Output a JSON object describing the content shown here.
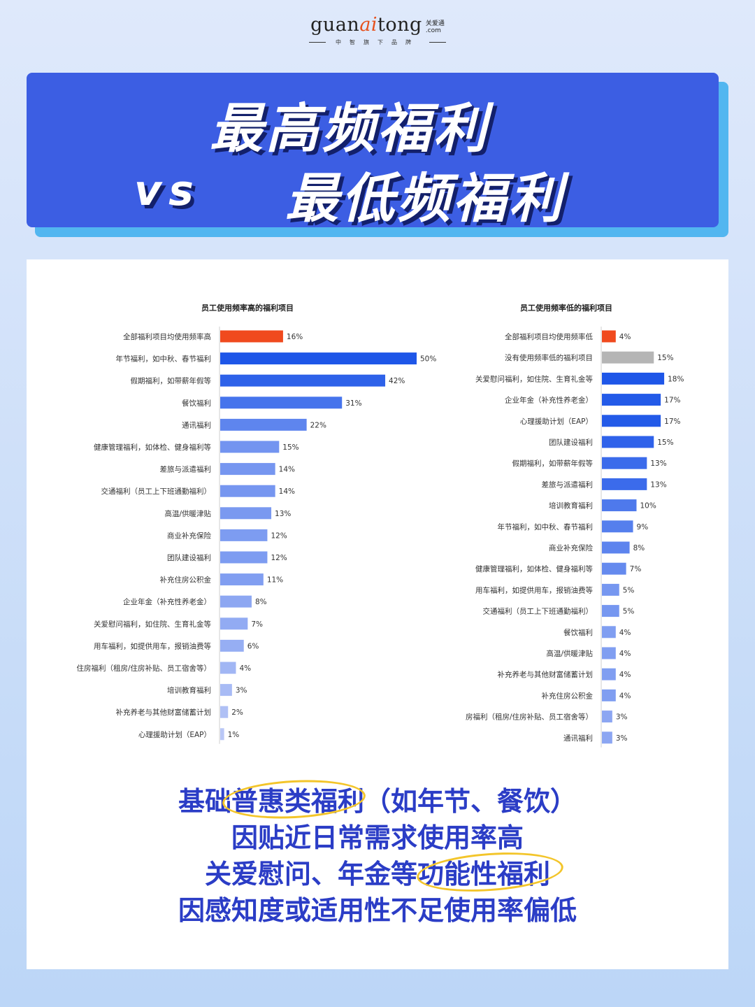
{
  "logo": {
    "word_pre": "guan",
    "word_mid": "ai",
    "word_post": "tong",
    "side_cn": "关爱通",
    "side_com": ".com",
    "sub": "中智旗下品牌"
  },
  "banner": {
    "line1": "最高频福利",
    "vs": "vs",
    "line2": "最低频福利"
  },
  "colors": {
    "highlight_bar": "#f04a1e",
    "grey_bar": "#b5b5b5",
    "banner_bg": "#3c5ee3",
    "banner_shadow": "#52b6f0",
    "text_blue": "#2b3dc6",
    "circle": "#f3c52a"
  },
  "chart_data": [
    {
      "type": "bar",
      "orientation": "horizontal",
      "title": "员工使用频率高的福利项目",
      "categories": [
        "全部福利项目均使用频率高",
        "年节福利，如中秋、春节福利",
        "假期福利，如带薪年假等",
        "餐饮福利",
        "通讯福利",
        "健康管理福利，如体检、健身福利等",
        "差旅与派遣福利",
        "交通福利（员工上下班通勤福利）",
        "高温/供暖津贴",
        "商业补充保险",
        "团队建设福利",
        "补充住房公积金",
        "企业年金（补充性养老金）",
        "关爱慰问福利，如住院、生育礼金等",
        "用车福利，如提供用车，报销油费等",
        "住房福利（租房/住房补贴、员工宿舍等）",
        "培训教育福利",
        "补充养老与其他财富储蓄计划",
        "心理援助计划（EAP）"
      ],
      "values": [
        16,
        50,
        42,
        31,
        22,
        15,
        14,
        14,
        13,
        12,
        12,
        11,
        8,
        7,
        6,
        4,
        3,
        2,
        1
      ],
      "value_labels": [
        "16%",
        "50%",
        "42%",
        "31%",
        "22%",
        "15%",
        "14%",
        "14%",
        "13%",
        "12%",
        "12%",
        "11%",
        "8%",
        "7%",
        "6%",
        "4%",
        "3%",
        "2%",
        "1%"
      ],
      "highlight_index": 0,
      "unit": "%"
    },
    {
      "type": "bar",
      "orientation": "horizontal",
      "title": "员工使用频率低的福利项目",
      "categories": [
        "全部福利项目均使用频率低",
        "没有使用频率低的福利项目",
        "关爱慰问福利，如住院、生育礼金等",
        "企业年金（补充性养老金）",
        "心理援助计划（EAP）",
        "团队建设福利",
        "假期福利，如带薪年假等",
        "差旅与派遣福利",
        "培训教育福利",
        "年节福利，如中秋、春节福利",
        "商业补充保险",
        "健康管理福利，如体检、健身福利等",
        "用车福利，如提供用车，报销油费等",
        "交通福利（员工上下班通勤福利）",
        "餐饮福利",
        "高温/供暖津贴",
        "补充养老与其他财富储蓄计划",
        "补充住房公积金",
        "房福利（租房/住房补贴、员工宿舍等）",
        "通讯福利"
      ],
      "values": [
        4,
        15,
        18,
        17,
        17,
        15,
        13,
        13,
        10,
        9,
        8,
        7,
        5,
        5,
        4,
        4,
        4,
        4,
        3,
        3
      ],
      "value_labels": [
        "4%",
        "15%",
        "18%",
        "17%",
        "17%",
        "15%",
        "13%",
        "13%",
        "10%",
        "9%",
        "8%",
        "7%",
        "5%",
        "5%",
        "4%",
        "4%",
        "4%",
        "4%",
        "3%",
        "3%"
      ],
      "highlight_index": 0,
      "grey_index": 1,
      "unit": "%"
    }
  ],
  "summary": {
    "line1": "基础普惠类福利（如年节、餐饮）",
    "line2": "因贴近日常需求使用率高",
    "line3": "关爱慰问、年金等功能性福利",
    "line4": "因感知度或适用性不足使用率偏低"
  }
}
